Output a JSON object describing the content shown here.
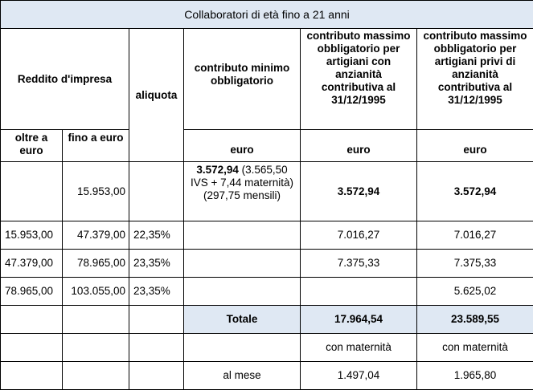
{
  "table": {
    "title": "Collaboratori di età fino a 21 anni",
    "headers": {
      "reddito": "Reddito d'impresa",
      "aliquota": "aliquota",
      "minimo": "contributo minimo obbligatorio",
      "massimo_con": "contributo massimo obbligatorio per artigiani con anzianità contributiva al 31/12/1995",
      "massimo_privi": "contributo massimo obbligatorio per artigiani privi di anzianità contributiva al 31/12/1995",
      "oltre": "oltre a euro",
      "fino": "fino a euro",
      "euro": "euro"
    },
    "rows": [
      {
        "oltre": "",
        "fino": "15.953,00",
        "aliquota": "",
        "minimo_bold": "3.572,94",
        "minimo_detail": " (3.565,50 IVS + 7,44 maternità) (297,75 mensili)",
        "massimo_con": "3.572,94",
        "massimo_privi": "3.572,94"
      },
      {
        "oltre": "15.953,00",
        "fino": "47.379,00",
        "aliquota": "22,35%",
        "massimo_con": "7.016,27",
        "massimo_privi": "7.016,27"
      },
      {
        "oltre": "47.379,00",
        "fino": "78.965,00",
        "aliquota": "23,35%",
        "massimo_con": "7.375,33",
        "massimo_privi": "7.375,33"
      },
      {
        "oltre": "78.965,00",
        "fino": "103.055,00",
        "aliquota": "23,35%",
        "massimo_con": "",
        "massimo_privi": "5.625,02"
      }
    ],
    "totale": {
      "label": "Totale",
      "massimo_con": "17.964,54",
      "massimo_privi": "23.589,55"
    },
    "maternita": {
      "massimo_con": "con maternità",
      "massimo_privi": "con maternità"
    },
    "mese": {
      "label": "al mese",
      "massimo_con": "1.497,04",
      "massimo_privi": "1.965,80"
    }
  },
  "colors": {
    "highlight": "#dfe8f3",
    "border": "#000000"
  }
}
